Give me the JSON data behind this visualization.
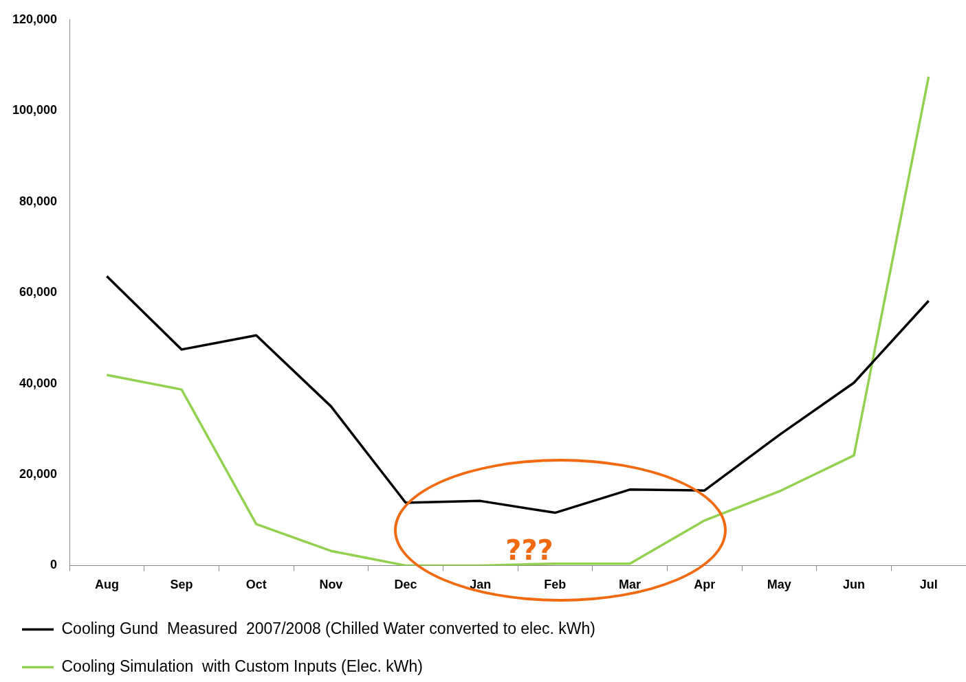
{
  "chart_data": {
    "type": "line",
    "categories": [
      "Aug",
      "Sep",
      "Oct",
      "Nov",
      "Dec",
      "Jan",
      "Feb",
      "Mar",
      "Apr",
      "May",
      "Jun",
      "Jul"
    ],
    "series": [
      {
        "name": "Cooling Gund  Measured  2007/2008 (Chilled Water converted to elec. kWh)",
        "color": "#000000",
        "values": [
          63600,
          47500,
          50600,
          35000,
          13800,
          14200,
          11600,
          16700,
          16500,
          28700,
          40200,
          58200
        ]
      },
      {
        "name": "Cooling Simulation  with Custom Inputs (Elec. kWh)",
        "color": "#92d050",
        "values": [
          41900,
          38700,
          9100,
          3200,
          0,
          0,
          400,
          400,
          9900,
          16300,
          24200,
          107500
        ]
      }
    ],
    "ylim": [
      0,
      120000
    ],
    "yticks": [
      0,
      {
        "value": 20000,
        "label": "20,000"
      },
      {
        "value": 40000,
        "label": "40,000"
      },
      {
        "value": 60000,
        "label": "60,000"
      },
      {
        "value": 80000,
        "label": "80,000"
      },
      {
        "value": 100000,
        "label": "100,000"
      },
      {
        "value": 120000,
        "label": "120,000"
      }
    ],
    "grid": false,
    "legend": "bottom",
    "marker": "none",
    "line_style": "solid",
    "annotations": [
      "???"
    ]
  }
}
